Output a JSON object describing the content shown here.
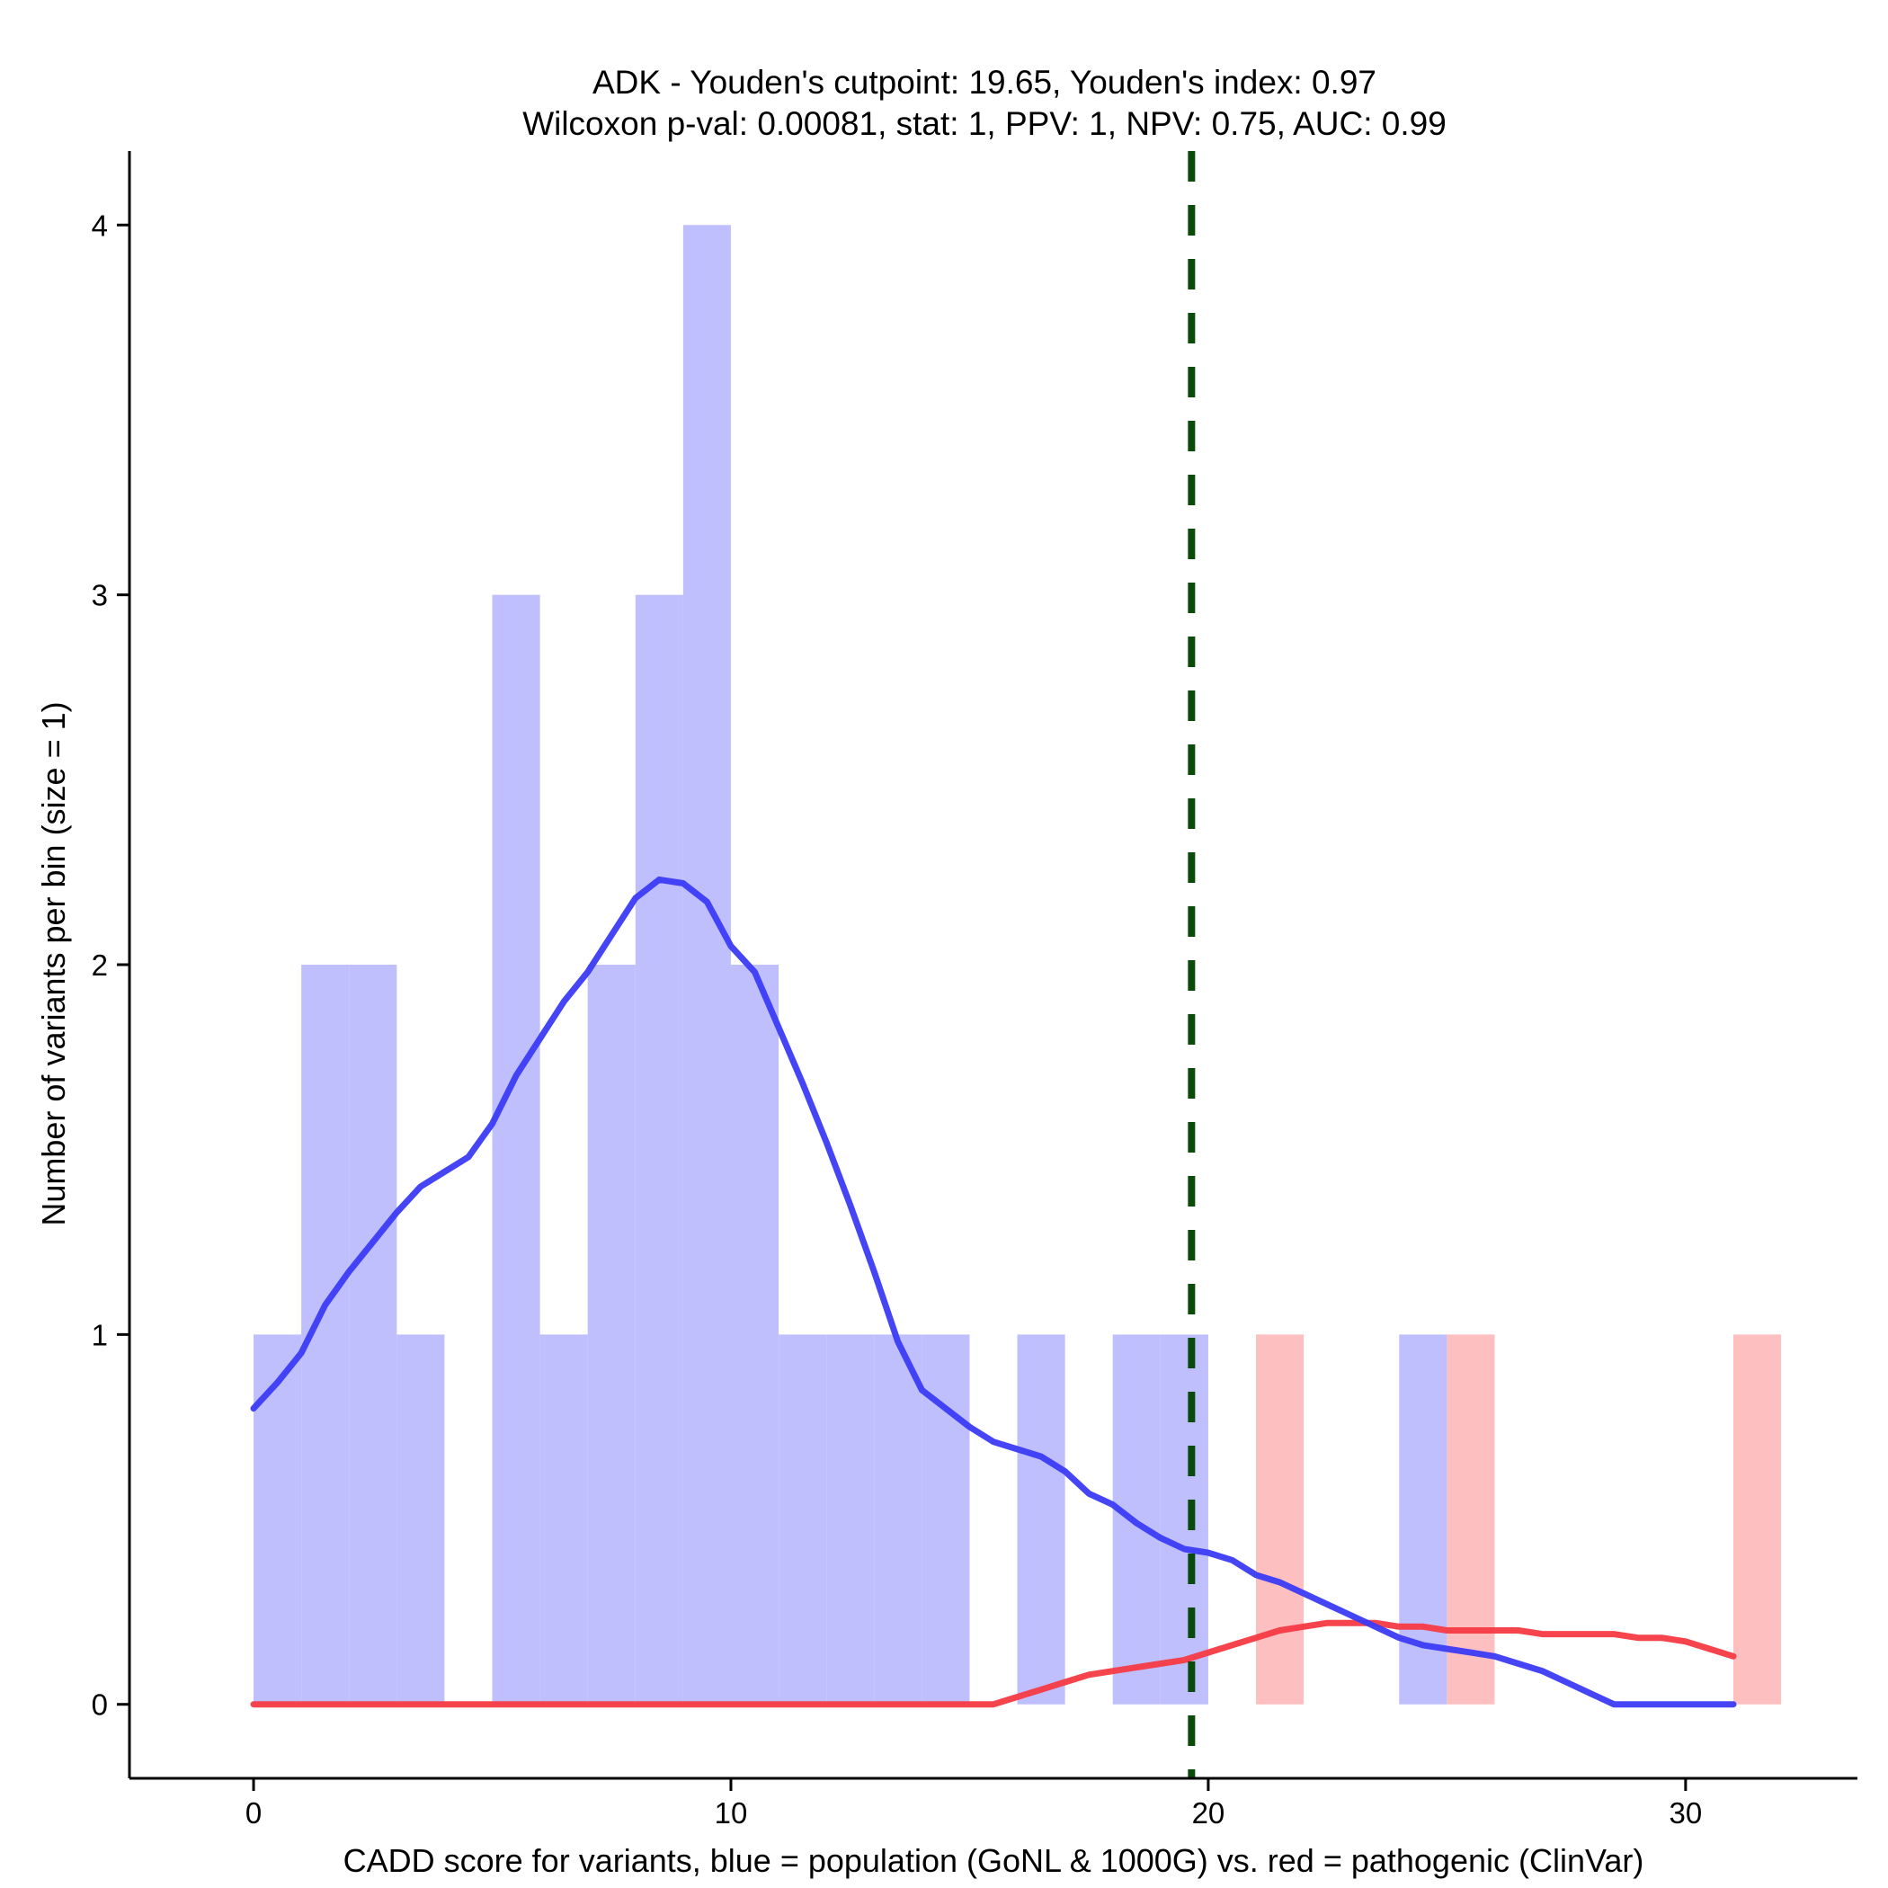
{
  "chart_data": {
    "type": "bar",
    "title": "ADK - Youden's cutpoint: 19.65, Youden's index: 0.97",
    "subtitle": "Wilcoxon p-val: 0.00081, stat: 1, PPV: 1, NPV: 0.75, AUC: 0.99",
    "xlabel": "CADD score for variants, blue = population (GoNL & 1000G) vs. red = pathogenic (ClinVar)",
    "ylabel": "Number of variants per bin (size = 1)",
    "xlim": [
      -2.6,
      33.6
    ],
    "ylim": [
      -0.2,
      4.2
    ],
    "x_ticks": [
      0,
      10,
      20,
      30
    ],
    "y_ticks": [
      0,
      1,
      2,
      3,
      4
    ],
    "cutpoint": 19.65,
    "colors": {
      "population_bar": "#bfbffd",
      "pathogenic_bar": "#febfc0",
      "population_curve": "#3b3bf6",
      "pathogenic_curve": "#f53a43",
      "cutpoint_line": "#0a4a0a"
    },
    "series": [
      {
        "name": "population (GoNL & 1000G)",
        "bin_width": 1,
        "bins": [
          {
            "start": 0,
            "count": 1
          },
          {
            "start": 1,
            "count": 2
          },
          {
            "start": 2,
            "count": 2
          },
          {
            "start": 3,
            "count": 1
          },
          {
            "start": 5,
            "count": 3
          },
          {
            "start": 6,
            "count": 1
          },
          {
            "start": 7,
            "count": 2
          },
          {
            "start": 8,
            "count": 3
          },
          {
            "start": 9,
            "count": 4
          },
          {
            "start": 10,
            "count": 2
          },
          {
            "start": 11,
            "count": 1
          },
          {
            "start": 12,
            "count": 1
          },
          {
            "start": 13,
            "count": 1
          },
          {
            "start": 14,
            "count": 1
          },
          {
            "start": 16,
            "count": 1
          },
          {
            "start": 18,
            "count": 1
          },
          {
            "start": 19,
            "count": 1
          },
          {
            "start": 24,
            "count": 1
          }
        ],
        "density_curve": {
          "x": [
            0,
            0.5,
            1,
            1.5,
            2,
            2.5,
            3,
            3.5,
            4,
            4.5,
            5,
            5.5,
            6,
            6.5,
            7,
            7.5,
            8,
            8.5,
            9,
            9.5,
            10,
            10.5,
            11,
            11.5,
            12,
            12.5,
            13,
            13.5,
            14,
            14.5,
            15,
            15.5,
            16,
            16.5,
            17,
            17.5,
            18,
            18.5,
            19,
            19.5,
            20,
            20.5,
            21,
            21.5,
            22,
            22.5,
            23,
            23.5,
            24,
            24.5,
            25,
            25.5,
            26,
            26.5,
            27,
            27.5,
            28,
            28.5,
            29,
            29.5,
            30,
            30.5,
            31
          ],
          "y": [
            0.8,
            0.87,
            0.95,
            1.08,
            1.17,
            1.25,
            1.33,
            1.4,
            1.44,
            1.48,
            1.57,
            1.7,
            1.8,
            1.9,
            1.98,
            2.08,
            2.18,
            2.23,
            2.22,
            2.17,
            2.05,
            1.98,
            1.83,
            1.68,
            1.52,
            1.35,
            1.17,
            0.98,
            0.85,
            0.8,
            0.75,
            0.71,
            0.69,
            0.67,
            0.63,
            0.57,
            0.54,
            0.49,
            0.45,
            0.42,
            0.41,
            0.39,
            0.35,
            0.33,
            0.3,
            0.27,
            0.24,
            0.21,
            0.18,
            0.16,
            0.15,
            0.14,
            0.13,
            0.11,
            0.09,
            0.06,
            0.03,
            0.0,
            0.0,
            0.0,
            0.0,
            0.0,
            0.0
          ]
        }
      },
      {
        "name": "pathogenic (ClinVar)",
        "bin_width": 1,
        "bins": [
          {
            "start": 21,
            "count": 1
          },
          {
            "start": 25,
            "count": 1
          },
          {
            "start": 31,
            "count": 1
          }
        ],
        "density_curve": {
          "x": [
            0,
            5,
            10,
            15,
            15.5,
            16,
            16.5,
            17,
            17.5,
            18,
            18.5,
            19,
            19.5,
            20,
            20.5,
            21,
            21.5,
            22,
            22.5,
            23,
            23.5,
            24,
            24.5,
            25,
            25.5,
            26,
            26.5,
            27,
            27.5,
            28,
            28.5,
            29,
            29.5,
            30,
            30.5,
            31
          ],
          "y": [
            0,
            0,
            0,
            0,
            0.0,
            0.02,
            0.04,
            0.06,
            0.08,
            0.09,
            0.1,
            0.11,
            0.12,
            0.14,
            0.16,
            0.18,
            0.2,
            0.21,
            0.22,
            0.22,
            0.22,
            0.21,
            0.21,
            0.2,
            0.2,
            0.2,
            0.2,
            0.19,
            0.19,
            0.19,
            0.19,
            0.18,
            0.18,
            0.17,
            0.15,
            0.13
          ]
        }
      }
    ]
  }
}
